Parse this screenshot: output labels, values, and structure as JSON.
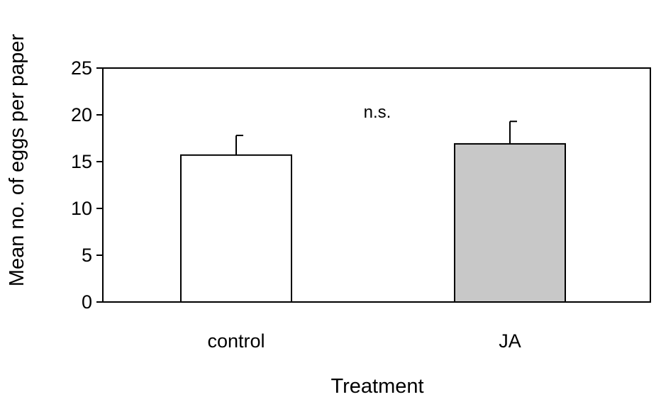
{
  "chart_data": {
    "type": "bar",
    "categories": [
      "control",
      "JA"
    ],
    "values": [
      15.7,
      16.9
    ],
    "errors": [
      2.1,
      2.4
    ],
    "bar_colors": [
      "#ffffff",
      "#c8c8c8"
    ],
    "xlabel": "Treatment",
    "ylabel": "Mean no. of eggs per paper",
    "ylim": [
      0,
      25
    ],
    "yticks": [
      "0",
      "5",
      "10",
      "15",
      "20",
      "25"
    ],
    "annotation": "n.s.",
    "grid": false,
    "legend": "none"
  }
}
